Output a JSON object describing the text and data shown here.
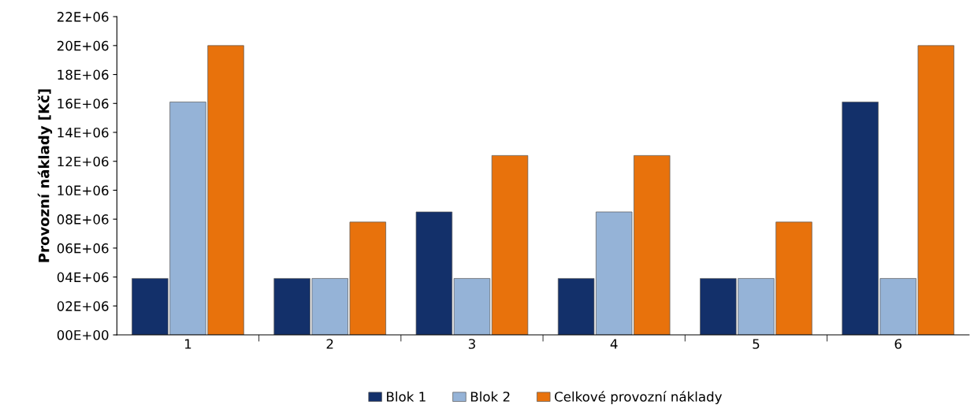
{
  "chart_data": {
    "type": "bar",
    "ylabel": "Provozní náklady [Kč]",
    "categories": [
      "1",
      "2",
      "3",
      "4",
      "5",
      "6"
    ],
    "series": [
      {
        "name": "Blok 1",
        "color": "#13306a",
        "values": [
          3900000,
          3900000,
          8500000,
          3900000,
          3900000,
          16100000
        ]
      },
      {
        "name": "Blok 2",
        "color": "#95b3d7",
        "values": [
          16100000,
          3900000,
          3900000,
          8500000,
          3900000,
          3900000
        ]
      },
      {
        "name": "Celkové provozní náklady",
        "color": "#e8720c",
        "values": [
          20000000,
          7800000,
          12400000,
          12400000,
          7800000,
          20000000
        ]
      }
    ],
    "ylim": [
      0,
      22000000
    ],
    "yticks": [
      {
        "value": 0,
        "label": "00E+00"
      },
      {
        "value": 2000000,
        "label": "02E+06"
      },
      {
        "value": 4000000,
        "label": "04E+06"
      },
      {
        "value": 6000000,
        "label": "06E+06"
      },
      {
        "value": 8000000,
        "label": "08E+06"
      },
      {
        "value": 10000000,
        "label": "10E+06"
      },
      {
        "value": 12000000,
        "label": "12E+06"
      },
      {
        "value": 14000000,
        "label": "14E+06"
      },
      {
        "value": 16000000,
        "label": "16E+06"
      },
      {
        "value": 18000000,
        "label": "18E+06"
      },
      {
        "value": 20000000,
        "label": "20E+06"
      },
      {
        "value": 22000000,
        "label": "22E+06"
      }
    ],
    "grid": false,
    "legend": "bottom"
  }
}
